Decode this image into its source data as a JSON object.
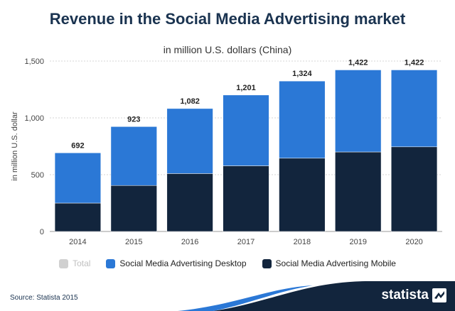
{
  "header": {
    "title": "Revenue in the Social Media Advertising market",
    "subtitle": "in million U.S. dollars (China)"
  },
  "chart_data": {
    "type": "bar",
    "stacked": true,
    "categories": [
      "2014",
      "2015",
      "2016",
      "2017",
      "2018",
      "2019",
      "2020"
    ],
    "series": [
      {
        "name": "Social Media Advertising Mobile",
        "color": "#12253d",
        "values": [
          250,
          405,
          510,
          578,
          645,
          700,
          745
        ]
      },
      {
        "name": "Social Media Advertising Desktop",
        "color": "#2b78d6",
        "values": [
          442,
          518,
          572,
          623,
          679,
          722,
          677
        ]
      }
    ],
    "totals": [
      "692",
      "923",
      "1,082",
      "1,201",
      "1,324",
      "1,422",
      "1,422"
    ],
    "ylabel": "in million U.S. dollar",
    "ylim": [
      0,
      1500
    ],
    "yticks": [
      {
        "value": 0,
        "label": "0"
      },
      {
        "value": 500,
        "label": "500"
      },
      {
        "value": 1000,
        "label": "1,000"
      },
      {
        "value": 1500,
        "label": "1,500"
      }
    ],
    "grid": true,
    "legend_position": "bottom"
  },
  "legend": {
    "items": [
      {
        "label": "Total",
        "color": "#d0d0d0",
        "muted": true
      },
      {
        "label": "Social Media Advertising Desktop",
        "color": "#2b78d6",
        "muted": false
      },
      {
        "label": "Social Media Advertising Mobile",
        "color": "#12253d",
        "muted": false
      }
    ]
  },
  "footer": {
    "source": "Source: Statista 2015",
    "brand": "statista"
  }
}
